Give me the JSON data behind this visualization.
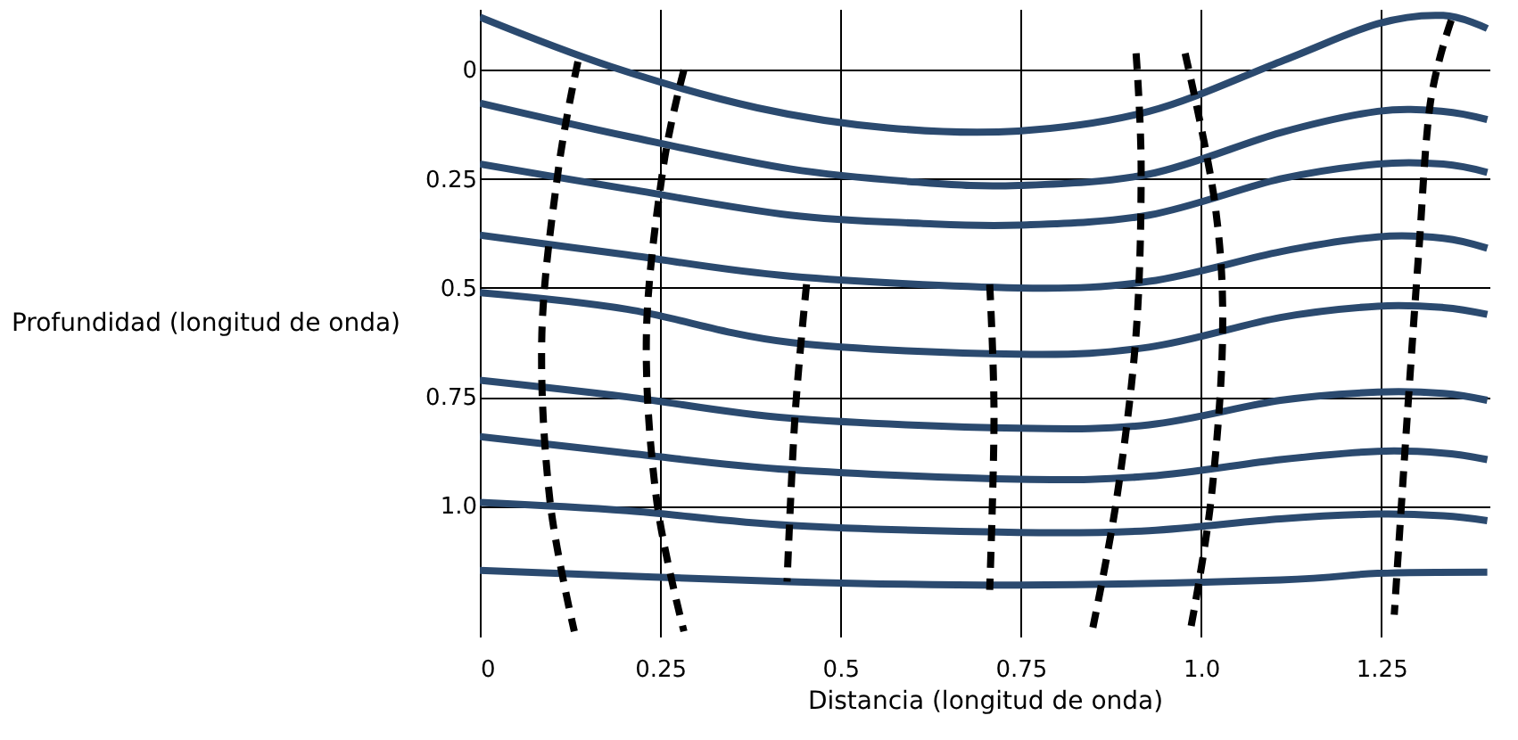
{
  "chart_data": {
    "type": "line",
    "xlabel": "Distancia (longitud de onda)",
    "ylabel": "Profundidad (longitud de onda)",
    "xlim": [
      0,
      1.4
    ],
    "ylim": [
      1.3,
      -0.14
    ],
    "xticks": [
      0,
      0.25,
      0.5,
      0.75,
      {
        "value": 1,
        "label": "1.0"
      },
      1.25
    ],
    "yticks": [
      0,
      0.25,
      0.5,
      0.75,
      {
        "value": 1,
        "label": "1.0"
      }
    ],
    "grid": true,
    "legend": false,
    "marker": "none",
    "series": [
      {
        "color": "#2b4a6f",
        "line_style": "solid",
        "x": [
          0,
          0.181,
          0.385,
          0.566,
          0.747,
          0.928,
          1.11,
          1.245,
          1.336,
          1.397
        ],
        "values": [
          -0.121,
          -0.008,
          0.087,
          0.133,
          0.14,
          0.095,
          -0.019,
          -0.106,
          -0.125,
          -0.095
        ]
      },
      {
        "color": "#2b4a6f",
        "line_style": "solid",
        "x": [
          0,
          0.204,
          0.43,
          0.611,
          0.747,
          0.928,
          1.11,
          1.245,
          1.336,
          1.397
        ],
        "values": [
          0.076,
          0.152,
          0.227,
          0.258,
          0.265,
          0.239,
          0.144,
          0.095,
          0.095,
          0.114
        ]
      },
      {
        "color": "#2b4a6f",
        "line_style": "solid",
        "x": [
          0,
          0.204,
          0.43,
          0.611,
          0.747,
          0.928,
          1.11,
          1.245,
          1.336,
          1.397
        ],
        "values": [
          0.216,
          0.273,
          0.333,
          0.352,
          0.356,
          0.333,
          0.25,
          0.216,
          0.216,
          0.235
        ]
      },
      {
        "color": "#2b4a6f",
        "line_style": "solid",
        "x": [
          0,
          0.204,
          0.43,
          0.747,
          0.928,
          1.11,
          1.245,
          1.336,
          1.397
        ],
        "values": [
          0.379,
          0.424,
          0.473,
          0.5,
          0.485,
          0.417,
          0.383,
          0.386,
          0.409
        ]
      },
      {
        "color": "#2b4a6f",
        "line_style": "solid",
        "x": [
          0,
          0.204,
          0.43,
          0.747,
          0.928,
          1.11,
          1.245,
          1.336,
          1.397
        ],
        "values": [
          0.511,
          0.549,
          0.625,
          0.652,
          0.636,
          0.568,
          0.542,
          0.545,
          0.561
        ]
      },
      {
        "color": "#2b4a6f",
        "line_style": "solid",
        "x": [
          0,
          0.204,
          0.43,
          0.747,
          0.928,
          1.11,
          1.245,
          1.336,
          1.397
        ],
        "values": [
          0.712,
          0.75,
          0.799,
          0.822,
          0.814,
          0.758,
          0.739,
          0.742,
          0.758
        ]
      },
      {
        "color": "#2b4a6f",
        "line_style": "solid",
        "x": [
          0,
          0.204,
          0.43,
          0.747,
          0.928,
          1.11,
          1.245,
          1.336,
          1.397
        ],
        "values": [
          0.841,
          0.879,
          0.917,
          0.939,
          0.932,
          0.894,
          0.875,
          0.879,
          0.894
        ]
      },
      {
        "color": "#2b4a6f",
        "line_style": "solid",
        "x": [
          0,
          0.204,
          0.43,
          0.747,
          0.928,
          1.11,
          1.245,
          1.336,
          1.397
        ],
        "values": [
          0.992,
          1.011,
          1.045,
          1.061,
          1.057,
          1.03,
          1.019,
          1.023,
          1.034
        ]
      },
      {
        "color": "#2b4a6f",
        "line_style": "solid",
        "x": [
          0,
          0.43,
          0.747,
          1.11,
          1.245,
          1.397
        ],
        "values": [
          1.148,
          1.174,
          1.182,
          1.17,
          1.155,
          1.152
        ]
      },
      {
        "color": "#000000",
        "line_style": "dashed",
        "x": [
          0.136,
          0.109,
          0.086,
          0.097,
          0.131
        ],
        "values": [
          -0.019,
          0.227,
          0.606,
          0.985,
          1.288
        ]
      },
      {
        "color": "#000000",
        "line_style": "dashed",
        "x": [
          0.283,
          0.254,
          0.231,
          0.245,
          0.283
        ],
        "values": [
          0,
          0.227,
          0.606,
          0.985,
          1.288
        ]
      },
      {
        "color": "#000000",
        "line_style": "dashed",
        "x": [
          0.453,
          0.437,
          0.426
        ],
        "values": [
          0.492,
          0.795,
          1.174
        ]
      },
      {
        "color": "#000000",
        "line_style": "dashed",
        "x": [
          0.707,
          0.713,
          0.707
        ],
        "values": [
          0.492,
          0.795,
          1.193
        ]
      },
      {
        "color": "#000000",
        "line_style": "dashed",
        "x": [
          0.91,
          0.917,
          0.91,
          0.883,
          0.849
        ],
        "values": [
          -0.038,
          0.227,
          0.606,
          0.985,
          1.288
        ]
      },
      {
        "color": "#000000",
        "line_style": "dashed",
        "x": [
          0.978,
          1.019,
          1.03,
          1.014,
          0.985
        ],
        "values": [
          -0.038,
          0.303,
          0.606,
          0.985,
          1.288
        ]
      },
      {
        "color": "#000000",
        "line_style": "dashed",
        "x": [
          1.347,
          1.318,
          1.302,
          1.286,
          1.268
        ],
        "values": [
          -0.114,
          0.076,
          0.417,
          0.795,
          1.25
        ]
      }
    ]
  }
}
